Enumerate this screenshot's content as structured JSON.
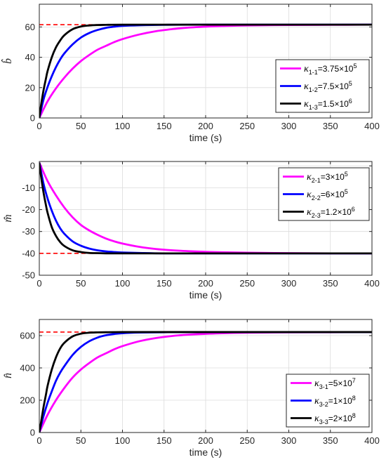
{
  "chart_data": [
    {
      "type": "line",
      "xlabel": "time (s)",
      "ylabel": "b̂",
      "xlim": [
        0,
        400
      ],
      "ylim": [
        0,
        75
      ],
      "xticks": [
        "0",
        "50",
        "100",
        "150",
        "200",
        "250",
        "300",
        "350",
        "400"
      ],
      "yticks": [
        "0",
        "20",
        "40",
        "60"
      ],
      "grid": true,
      "legend_position": "right",
      "reference": {
        "value": 61.5,
        "color": "#ff0000",
        "style": "dashed"
      },
      "series": [
        {
          "name_base": "κ",
          "name_sub": "1-1",
          "name_tail": "=3.75×10",
          "name_sup": "5",
          "color": "#ff00ff",
          "x": [
            0,
            10,
            20,
            30,
            40,
            50,
            60,
            70,
            80,
            90,
            100,
            120,
            140,
            160,
            180,
            200,
            220,
            250,
            300,
            350,
            400
          ],
          "y": [
            0,
            11,
            19.5,
            26.5,
            32.5,
            37.5,
            41.5,
            45,
            47.5,
            50,
            52,
            55,
            57.2,
            58.6,
            59.6,
            60.2,
            60.6,
            61,
            61.3,
            61.4,
            61.5
          ]
        },
        {
          "name_base": "κ",
          "name_sub": "1-2",
          "name_tail": "=7.5×10",
          "name_sup": "5",
          "color": "#0000ff",
          "x": [
            0,
            5,
            10,
            15,
            20,
            25,
            30,
            40,
            50,
            60,
            70,
            80,
            90,
            100,
            120,
            150,
            200,
            300,
            400
          ],
          "y": [
            0,
            12,
            20.5,
            27.5,
            33.5,
            38.5,
            42.5,
            48.5,
            53,
            56,
            58,
            59.4,
            60.2,
            60.7,
            61.1,
            61.4,
            61.5,
            61.5,
            61.5
          ]
        },
        {
          "name_base": "κ",
          "name_sub": "1-3",
          "name_tail": "=1.5×10",
          "name_sup": "6",
          "color": "#000000",
          "x": [
            0,
            2,
            5,
            8,
            10,
            15,
            20,
            25,
            30,
            40,
            50,
            60,
            70,
            80,
            100,
            150,
            200,
            300,
            400
          ],
          "y": [
            0,
            8,
            18,
            26,
            31,
            40,
            46.5,
            51,
            54.5,
            58.5,
            60.3,
            61,
            61.3,
            61.4,
            61.5,
            61.5,
            61.5,
            61.5,
            61.5
          ]
        }
      ]
    },
    {
      "type": "line",
      "xlabel": "time (s)",
      "ylabel": "m̂",
      "xlim": [
        0,
        400
      ],
      "ylim": [
        -50,
        2
      ],
      "xticks": [
        "0",
        "50",
        "100",
        "150",
        "200",
        "250",
        "300",
        "350",
        "400"
      ],
      "yticks": [
        "-50",
        "-40",
        "-30",
        "-20",
        "-10",
        "0"
      ],
      "grid": true,
      "legend_position": "top-right",
      "reference": {
        "value": -40,
        "color": "#ff0000",
        "style": "dashed"
      },
      "series": [
        {
          "name_base": "κ",
          "name_sub": "2-1",
          "name_tail": "=3×10",
          "name_sup": "5",
          "color": "#ff00ff",
          "x": [
            0,
            10,
            20,
            30,
            40,
            50,
            60,
            70,
            80,
            90,
            100,
            120,
            140,
            160,
            180,
            200,
            220,
            250,
            300,
            350,
            400
          ],
          "y": [
            1.5,
            -7,
            -13.5,
            -19,
            -23.5,
            -27,
            -29.5,
            -31.5,
            -33.2,
            -34.5,
            -35.5,
            -37,
            -38,
            -38.6,
            -39,
            -39.3,
            -39.5,
            -39.7,
            -39.9,
            -40,
            -40
          ]
        },
        {
          "name_base": "κ",
          "name_sub": "2-2",
          "name_tail": "=6×10",
          "name_sup": "5",
          "color": "#0000ff",
          "x": [
            0,
            5,
            10,
            15,
            20,
            25,
            30,
            40,
            50,
            60,
            70,
            80,
            90,
            100,
            120,
            150,
            200,
            300,
            400
          ],
          "y": [
            1.5,
            -8,
            -15,
            -20.5,
            -25,
            -28.5,
            -31,
            -34.5,
            -36.5,
            -37.8,
            -38.6,
            -39.1,
            -39.4,
            -39.6,
            -39.8,
            -40,
            -40,
            -40,
            -40
          ]
        },
        {
          "name_base": "κ",
          "name_sub": "2-3",
          "name_tail": "=1.2×10",
          "name_sup": "6",
          "color": "#000000",
          "x": [
            0,
            2,
            5,
            8,
            10,
            15,
            20,
            25,
            30,
            40,
            50,
            60,
            70,
            80,
            100,
            150,
            200,
            300,
            400
          ],
          "y": [
            1.5,
            -4.5,
            -12,
            -18,
            -21.5,
            -28,
            -32,
            -34.8,
            -36.6,
            -38.6,
            -39.4,
            -39.8,
            -39.9,
            -40,
            -40,
            -40,
            -40,
            -40,
            -40
          ]
        }
      ]
    },
    {
      "type": "line",
      "xlabel": "time (s)",
      "ylabel": "n̂",
      "xlim": [
        0,
        400
      ],
      "ylim": [
        0,
        700
      ],
      "xticks": [
        "0",
        "50",
        "100",
        "150",
        "200",
        "250",
        "300",
        "350",
        "400"
      ],
      "yticks": [
        "0",
        "200",
        "400",
        "600"
      ],
      "grid": true,
      "legend_position": "bottom-right",
      "reference": {
        "value": 622,
        "color": "#ff0000",
        "style": "dashed"
      },
      "series": [
        {
          "name_base": "κ",
          "name_sub": "3-1",
          "name_tail": "=5×10",
          "name_sup": "7",
          "color": "#ff00ff",
          "x": [
            0,
            10,
            20,
            30,
            40,
            50,
            60,
            70,
            80,
            90,
            100,
            120,
            140,
            160,
            180,
            200,
            220,
            250,
            300,
            350,
            400
          ],
          "y": [
            0,
            110,
            200,
            275,
            340,
            390,
            430,
            465,
            490,
            515,
            535,
            565,
            585,
            598,
            606,
            611,
            615,
            618,
            620,
            621,
            622
          ]
        },
        {
          "name_base": "κ",
          "name_sub": "3-2",
          "name_tail": "=1×10",
          "name_sup": "8",
          "color": "#0000ff",
          "x": [
            0,
            5,
            10,
            15,
            20,
            25,
            30,
            40,
            50,
            60,
            70,
            80,
            90,
            100,
            120,
            150,
            200,
            300,
            400
          ],
          "y": [
            0,
            100,
            185,
            255,
            320,
            370,
            410,
            480,
            530,
            565,
            588,
            602,
            610,
            615,
            619,
            621,
            622,
            622,
            622
          ]
        },
        {
          "name_base": "κ",
          "name_sub": "3-3",
          "name_tail": "=2×10",
          "name_sup": "8",
          "color": "#000000",
          "x": [
            0,
            2,
            5,
            8,
            10,
            15,
            20,
            25,
            30,
            40,
            50,
            60,
            70,
            80,
            100,
            150,
            200,
            300,
            400
          ],
          "y": [
            0,
            60,
            155,
            235,
            290,
            390,
            465,
            520,
            555,
            595,
            612,
            618,
            620,
            621,
            622,
            622,
            622,
            622,
            622
          ]
        }
      ]
    }
  ]
}
